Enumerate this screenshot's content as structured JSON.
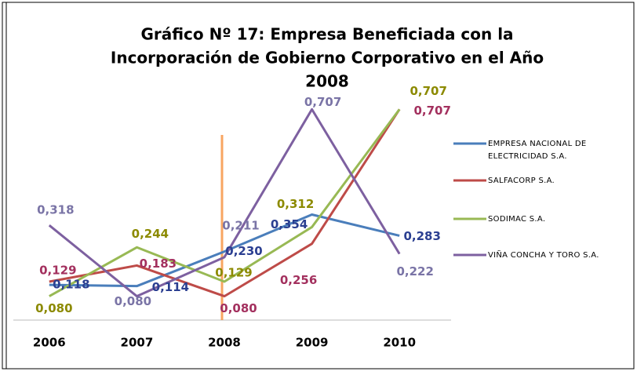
{
  "chart_data": {
    "type": "line",
    "title": [
      "Gráfico Nº 17: Empresa  Beneficiada con la",
      "Incorporación de Gobierno Corporativo en el Año",
      "2008"
    ],
    "categories": [
      "2006",
      "2007",
      "2008",
      "2009",
      "2010"
    ],
    "ylim": [
      0,
      0.8
    ],
    "series": [
      {
        "name": "EMPRESA NACIONAL DE ELECTRICIDAD S.A.",
        "color": "#4a7ebb",
        "label_color": "#2b3f91",
        "values": [
          0.118,
          0.114,
          0.23,
          0.354,
          0.283
        ],
        "value_labels": [
          "0,118",
          "0,114",
          "0,230",
          "0,354",
          "0,283"
        ]
      },
      {
        "name": "SALFACORP S.A.",
        "color": "#be4b48",
        "label_color": "#a3305e",
        "values": [
          0.129,
          0.183,
          0.08,
          0.256,
          0.707
        ],
        "value_labels": [
          "0,129",
          "0,183",
          "0,080",
          "0,256",
          "0,707"
        ]
      },
      {
        "name": "SODIMAC S.A.",
        "color": "#98b954",
        "label_color": "#8c8a00",
        "values": [
          0.08,
          0.244,
          0.129,
          0.312,
          0.707
        ],
        "value_labels": [
          "0,080",
          "0,244",
          "0,129",
          "0,312",
          "0,707"
        ]
      },
      {
        "name": "VIÑA CONCHA Y TORO S.A.",
        "color": "#7d60a0",
        "label_color": "#7a74a6",
        "values": [
          0.318,
          0.08,
          0.211,
          0.707,
          0.222
        ],
        "value_labels": [
          "0,318",
          "0,080",
          "0,211",
          "0,707",
          "0,222"
        ]
      }
    ],
    "legend": "right"
  }
}
